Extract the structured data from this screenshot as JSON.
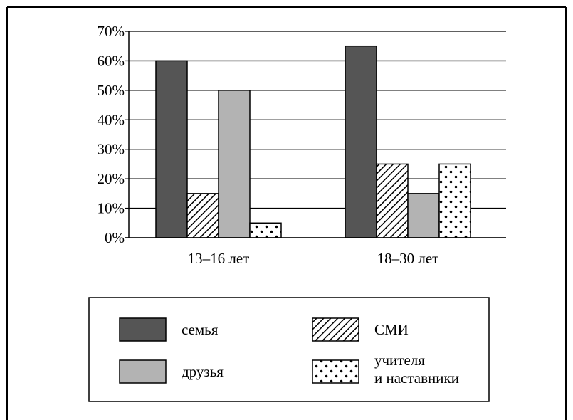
{
  "chart_data": {
    "type": "bar",
    "categories": [
      "13–16 лет",
      "18–30 лет"
    ],
    "series": [
      {
        "name": "семья",
        "values": [
          60,
          65
        ],
        "pattern": "solid-dark",
        "color": "#555555"
      },
      {
        "name": "СМИ",
        "values": [
          15,
          25
        ],
        "pattern": "hatch",
        "color": "#000000"
      },
      {
        "name": "друзья",
        "values": [
          50,
          15
        ],
        "pattern": "solid-light",
        "color": "#b3b3b3"
      },
      {
        "name": "учителя и наставники",
        "name_lines": [
          "учителя",
          "и наставники"
        ],
        "values": [
          5,
          25
        ],
        "pattern": "dots",
        "color": "#000000"
      }
    ],
    "yticks": [
      "0%",
      "10%",
      "20%",
      "30%",
      "40%",
      "50%",
      "60%",
      "70%"
    ],
    "ylim": [
      0,
      70
    ],
    "grid": true,
    "legend_position": "bottom"
  }
}
